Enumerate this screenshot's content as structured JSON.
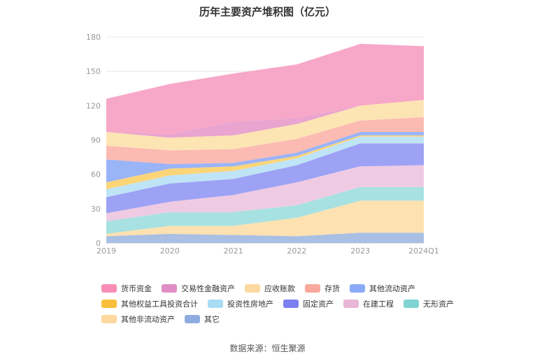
{
  "chart_data": {
    "type": "area",
    "stacked": true,
    "title": "历年主要资产堆积图（亿元）",
    "x": [
      "2019",
      "2020",
      "2021",
      "2022",
      "2023",
      "2024Q1"
    ],
    "ylim": [
      0,
      180
    ],
    "yticks": [
      0,
      30,
      60,
      90,
      120,
      150,
      180
    ],
    "xlabel": "",
    "ylabel": "",
    "grid": true,
    "legend_position": "bottom",
    "series": [
      {
        "name": "其它",
        "color": "#a9bfe3",
        "values": [
          6,
          8,
          7,
          6,
          9,
          9
        ]
      },
      {
        "name": "其他非流动资产",
        "color": "#fde1b0",
        "values": [
          2,
          7,
          8,
          16,
          28,
          28
        ]
      },
      {
        "name": "无形资产",
        "color": "#a7e1e1",
        "values": [
          11,
          12,
          12,
          11,
          12,
          12
        ]
      },
      {
        "name": "在建工程",
        "color": "#efcbe3",
        "values": [
          7,
          9,
          15,
          20,
          18,
          19
        ]
      },
      {
        "name": "固定资产",
        "color": "#9da2f5",
        "values": [
          14,
          16,
          14,
          15,
          20,
          19
        ]
      },
      {
        "name": "投资性房地产",
        "color": "#bfe4f6",
        "values": [
          7,
          7,
          7,
          6,
          6,
          6
        ]
      },
      {
        "name": "其他权益工具投资合计",
        "color": "#fcd579",
        "values": [
          6,
          6,
          4,
          2,
          1,
          1
        ]
      },
      {
        "name": "其他流动资产",
        "color": "#9ab4f8",
        "values": [
          20,
          4,
          3,
          3,
          3,
          3
        ]
      },
      {
        "name": "存货",
        "color": "#fbbab2",
        "values": [
          12,
          12,
          12,
          12,
          10,
          13
        ]
      },
      {
        "name": "应收账款",
        "color": "#fde4b3",
        "values": [
          12,
          11,
          12,
          13,
          13,
          15
        ]
      },
      {
        "name": "交易性金融资产",
        "color": "#e9a4cf",
        "values": [
          0,
          3,
          12,
          5,
          0,
          0
        ]
      },
      {
        "name": "货币资金",
        "color": "#f7a7c7",
        "values": [
          29,
          44,
          42,
          47,
          54,
          47
        ]
      }
    ]
  },
  "legend": {
    "rows": [
      [
        {
          "label": "货币资金",
          "color": "#f78db6"
        },
        {
          "label": "交易性金融资产",
          "color": "#e18ec4"
        },
        {
          "label": "应收账款",
          "color": "#fdd9a0"
        },
        {
          "label": "存货",
          "color": "#f9a89e"
        },
        {
          "label": "其他流动资产",
          "color": "#8caaf7"
        }
      ],
      [
        {
          "label": "其他权益工具投资合计",
          "color": "#f8bf3a"
        },
        {
          "label": "投资性房地产",
          "color": "#a9dcf5"
        },
        {
          "label": "固定资产",
          "color": "#7b7ff0"
        },
        {
          "label": "在建工程",
          "color": "#e8b6d7"
        },
        {
          "label": "无形资产",
          "color": "#7fd3d3"
        }
      ],
      [
        {
          "label": "其他非流动资产",
          "color": "#fdd9a0"
        },
        {
          "label": "其它",
          "color": "#8eacdf"
        }
      ]
    ]
  },
  "source": "数据来源：恒生聚源"
}
